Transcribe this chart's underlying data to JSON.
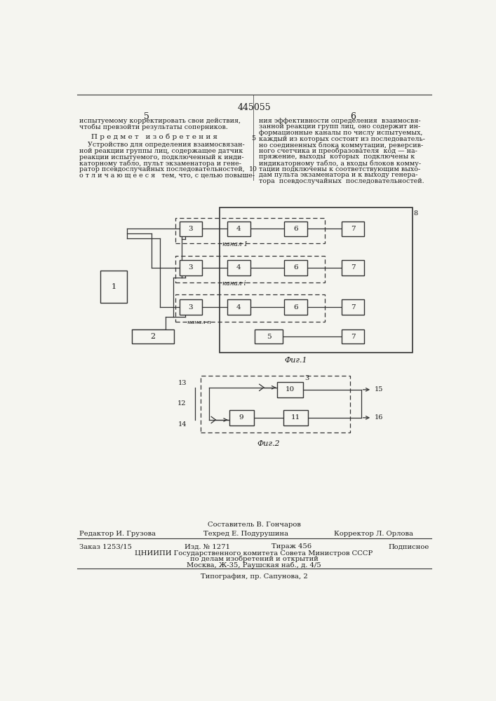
{
  "patent_number": "445055",
  "page_left": "5",
  "page_right": "6",
  "text_left_1": "испытуемому корректировать свои действия,",
  "text_left_2": "чтобы превзойти результаты соперников.",
  "section_title": "П р е д м е т   и з о б р е т е н и я",
  "text_right_lines": [
    "ния эффективности определения  взаимосвя-",
    "занной реакции групп лиц, оно содержит ин-",
    "формационные каналы по числу испытуемых,",
    "каждый из которых состоит из последователь-",
    "но соединенных блока коммутации, реверсив-",
    "ного счетчика и преобразователя  код — на-",
    "пряжение, выходы  которых  подключены к",
    "индикаторному табло, а входы блоков комму-",
    "тации подключены к соответствующим выхо-",
    "дам пульта экзаменатора и к выходу генера-",
    "тора  псевдослучайных  последовательностей."
  ],
  "text_left_body_lines": [
    "    Устройство для определения взаимосвязан-",
    "ной реакции группы лиц, содержащее датчик",
    "реакции испытуемого, подключенный к инди-",
    "каторному табло, пульт экзаменатора и гене-",
    "ратор псевдослучайных последовательностей,",
    "о т л и ч а ю щ е е с я   тем, что, с целью повыше-"
  ],
  "fig1_caption": "Фиг.1",
  "fig2_caption": "Фиг.2",
  "footer_composer": "Составитель В. Гончаров",
  "footer_editor": "Редактор И. Грузова",
  "footer_techred": "Техред Е. Подурушина",
  "footer_corrector": "Корректор Л. Орлова",
  "footer_order": "Заказ 1253/15",
  "footer_izd": "Изд. № 1271",
  "footer_tirazh": "Тираж 456",
  "footer_podpisnoe": "Подписное",
  "footer_org": "ЦНИИПИ Государственного комитета Совета Министров СССР",
  "footer_org2": "по делам изобретений и открытий",
  "footer_addr": "Москва, Ж-35, Раушская наб., д. 4/5",
  "footer_print": "Типография, пр. Сапунова, 2",
  "bg_color": "#f5f5f0",
  "text_color": "#1a1a1a",
  "line_color": "#333333"
}
